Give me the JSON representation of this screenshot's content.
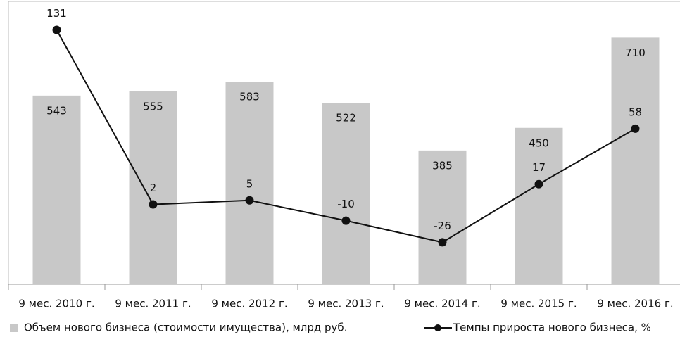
{
  "chart_data": {
    "type": "bar_line",
    "categories": [
      "9 мес. 2010 г.",
      "9 мес. 2011 г.",
      "9 мес. 2012 г.",
      "9 мес. 2013 г.",
      "9 мес. 2014 г.",
      "9 мес. 2015 г.",
      "9 мес. 2016 г."
    ],
    "series": [
      {
        "name": "Объем нового бизнеса (стоимости имущества), млрд руб.",
        "type": "bar",
        "color": "#c8c8c8",
        "values": [
          543,
          555,
          583,
          522,
          385,
          450,
          710
        ]
      },
      {
        "name": "Темпы прироста нового бизнеса, %",
        "type": "line",
        "axis": "y2",
        "color": "#111111",
        "values": [
          131,
          2,
          5,
          -10,
          -26,
          17,
          58
        ]
      }
    ],
    "ylim": [
      0,
      810
    ],
    "y2lim": [
      -57,
      151
    ]
  }
}
